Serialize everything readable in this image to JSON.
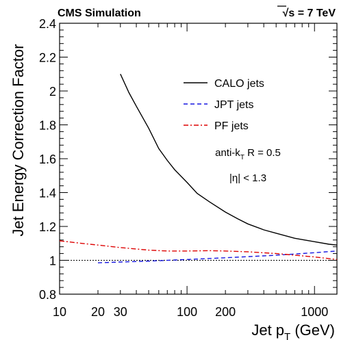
{
  "header": {
    "left": "CMS Simulation",
    "right_sqrt": "√s",
    "right_rest": " = 7 TeV"
  },
  "chart_data": {
    "type": "line",
    "xscale": "log",
    "xlim": [
      10,
      1500
    ],
    "ylim": [
      0.8,
      2.4
    ],
    "xlabel": {
      "main": "Jet p",
      "sub": "T",
      "tail": " (GeV)"
    },
    "ylabel": "Jet Energy Correction Factor",
    "xticks": [
      {
        "value": 10,
        "label": "10"
      },
      {
        "value": 20,
        "label": "20"
      },
      {
        "value": 30,
        "label": "30"
      },
      {
        "value": 100,
        "label": "100"
      },
      {
        "value": 200,
        "label": "200"
      },
      {
        "value": 1000,
        "label": "1000"
      }
    ],
    "yticks": [
      {
        "value": 0.8,
        "label": "0.8"
      },
      {
        "value": 1.0,
        "label": "1"
      },
      {
        "value": 1.2,
        "label": "1.2"
      },
      {
        "value": 1.4,
        "label": "1.4"
      },
      {
        "value": 1.6,
        "label": "1.6"
      },
      {
        "value": 1.8,
        "label": "1.8"
      },
      {
        "value": 2.0,
        "label": "2"
      },
      {
        "value": 2.2,
        "label": "2.2"
      },
      {
        "value": 2.4,
        "label": "2.4"
      }
    ],
    "reference_line": 1.0,
    "legend_position": "top-right",
    "series": [
      {
        "name": "CALO jets",
        "color": "#000000",
        "dash": "solid",
        "x": [
          30,
          35,
          40,
          50,
          60,
          70,
          80,
          100,
          120,
          150,
          200,
          250,
          300,
          400,
          500,
          700,
          1000,
          1300,
          1500
        ],
        "y": [
          2.1,
          1.99,
          1.91,
          1.78,
          1.66,
          1.59,
          1.535,
          1.46,
          1.395,
          1.345,
          1.285,
          1.245,
          1.215,
          1.18,
          1.16,
          1.13,
          1.11,
          1.095,
          1.09
        ]
      },
      {
        "name": "JPT jets",
        "color": "#1515e0",
        "dash": "dashed",
        "x": [
          20,
          30,
          50,
          100,
          200,
          500,
          1000,
          1500
        ],
        "y": [
          0.985,
          0.99,
          0.995,
          1.005,
          1.015,
          1.03,
          1.045,
          1.055
        ]
      },
      {
        "name": "PF jets",
        "color": "#dd0000",
        "dash": "dashdot",
        "x": [
          10,
          15,
          20,
          30,
          50,
          70,
          100,
          150,
          200,
          300,
          500,
          1000,
          1500
        ],
        "y": [
          1.115,
          1.1,
          1.09,
          1.075,
          1.06,
          1.055,
          1.055,
          1.057,
          1.055,
          1.05,
          1.04,
          1.02,
          1.005
        ]
      }
    ],
    "annotations": [
      {
        "main": "anti-k",
        "sub": "T",
        "tail": " R = 0.5"
      },
      {
        "main": "|η| < 1.3",
        "sub": "",
        "tail": ""
      }
    ]
  }
}
